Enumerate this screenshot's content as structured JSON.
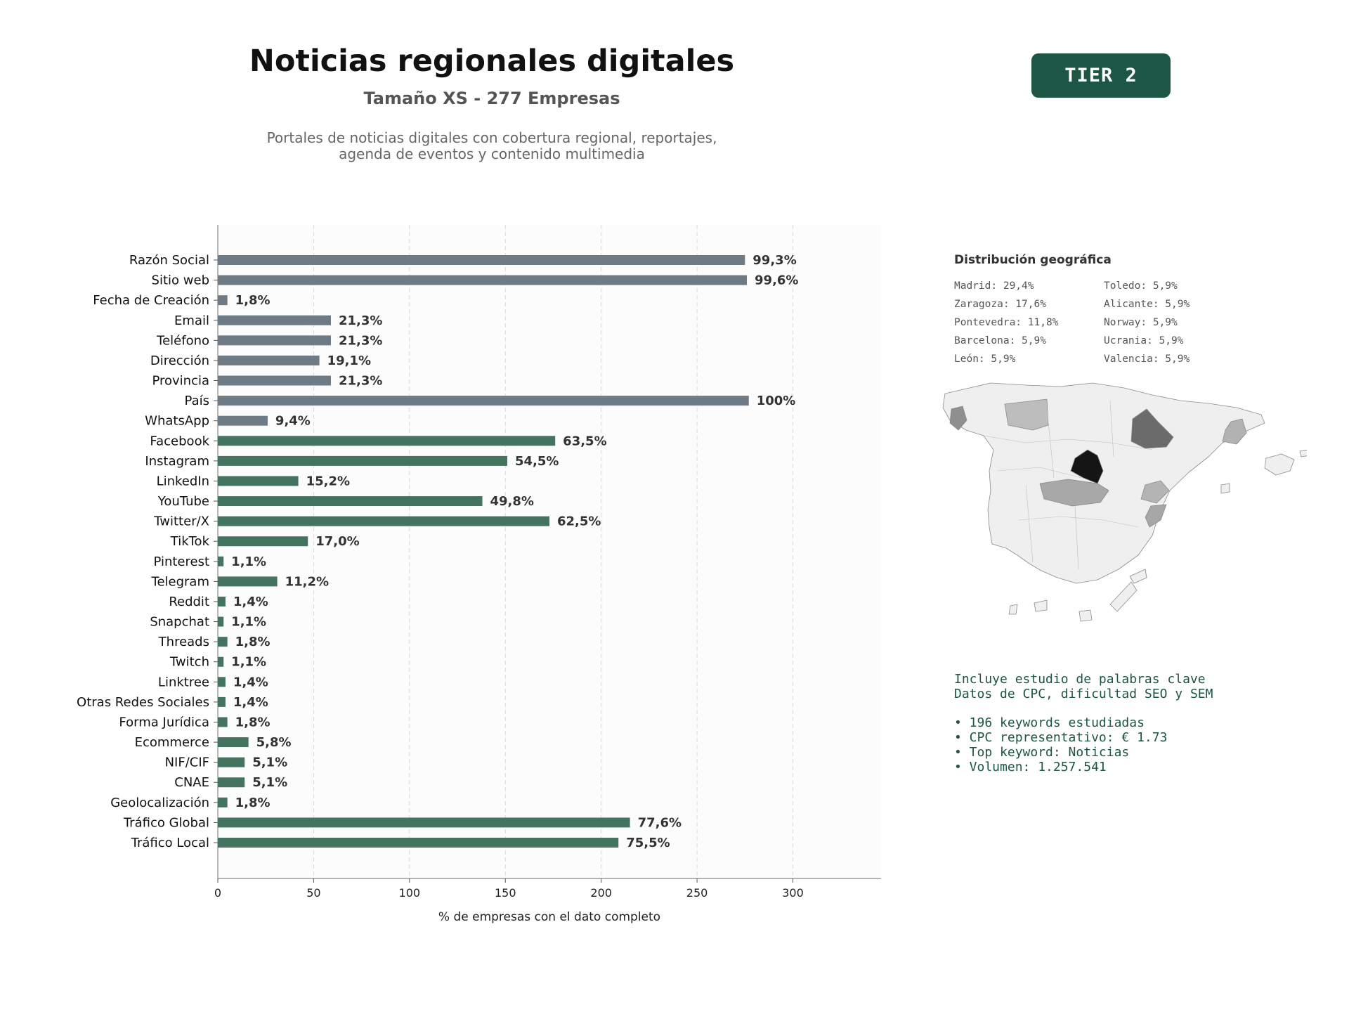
{
  "header": {
    "title": "Noticias regionales digitales",
    "subtitle": "Tamaño XS - 277 Empresas",
    "description_line1": "Portales de noticias digitales con cobertura regional, reportajes,",
    "description_line2": "agenda de eventos y contenido multimedia",
    "tier_badge": "TIER 2"
  },
  "colors": {
    "contact_bar": "#6e7a84",
    "social_bar": "#44735f",
    "accent": "#1d5644"
  },
  "chart_data": {
    "type": "bar",
    "orientation": "horizontal",
    "xlabel": "% de empresas con el dato completo",
    "ylabel": "",
    "xlim": [
      0,
      346
    ],
    "xticks": [
      0,
      50,
      100,
      150,
      200,
      250,
      300
    ],
    "grid": "vertical dashed",
    "categories": [
      "Razón Social",
      "Sitio web",
      "Fecha de Creación",
      "Email",
      "Teléfono",
      "Dirección",
      "Provincia",
      "País",
      "WhatsApp",
      "Facebook",
      "Instagram",
      "LinkedIn",
      "YouTube",
      "Twitter/X",
      "TikTok",
      "Pinterest",
      "Telegram",
      "Reddit",
      "Snapchat",
      "Threads",
      "Twitch",
      "Linktree",
      "Otras Redes Sociales",
      "Forma Jurídica",
      "Ecommerce",
      "NIF/CIF",
      "CNAE",
      "Geolocalización",
      "Tráfico Global",
      "Tráfico Local"
    ],
    "values": [
      275,
      276,
      5,
      59,
      59,
      53,
      59,
      277,
      26,
      176,
      151,
      42,
      138,
      173,
      47,
      3,
      31,
      4,
      3,
      5,
      3,
      4,
      4,
      5,
      16,
      14,
      14,
      5,
      215,
      209
    ],
    "labels": [
      "99,3%",
      "99,6%",
      "1,8%",
      "21,3%",
      "21,3%",
      "19,1%",
      "21,3%",
      "100%",
      "9,4%",
      "63,5%",
      "54,5%",
      "15,2%",
      "49,8%",
      "62,5%",
      "17,0%",
      "1,1%",
      "11,2%",
      "1,4%",
      "1,1%",
      "1,8%",
      "1,1%",
      "1,4%",
      "1,4%",
      "1,8%",
      "5,8%",
      "5,1%",
      "5,1%",
      "1,8%",
      "77,6%",
      "75,5%"
    ],
    "groups": [
      "contact",
      "contact",
      "contact",
      "contact",
      "contact",
      "contact",
      "contact",
      "contact",
      "contact",
      "social",
      "social",
      "social",
      "social",
      "social",
      "social",
      "social",
      "social",
      "social",
      "social",
      "social",
      "social",
      "social",
      "social",
      "social",
      "social",
      "social",
      "social",
      "social",
      "social",
      "social"
    ]
  },
  "geo": {
    "title": "Distribución geográfica",
    "items": [
      "Madrid: 29,4%",
      "Toledo: 5,9%",
      "Zaragoza: 17,6%",
      "Alicante: 5,9%",
      "Pontevedra: 11,8%",
      "Norway: 5,9%",
      "Barcelona: 5,9%",
      "Ucrania: 5,9%",
      "León: 5,9%",
      "Valencia: 5,9%"
    ]
  },
  "keywords": {
    "line1": "Incluye estudio de palabras clave",
    "line2": "Datos de CPC, dificultad SEO y SEM",
    "bullets": [
      "• 196 keywords estudiadas",
      "• CPC representativo: € 1.73",
      "• Top keyword: Noticias",
      "• Volumen: 1.257.541"
    ]
  }
}
